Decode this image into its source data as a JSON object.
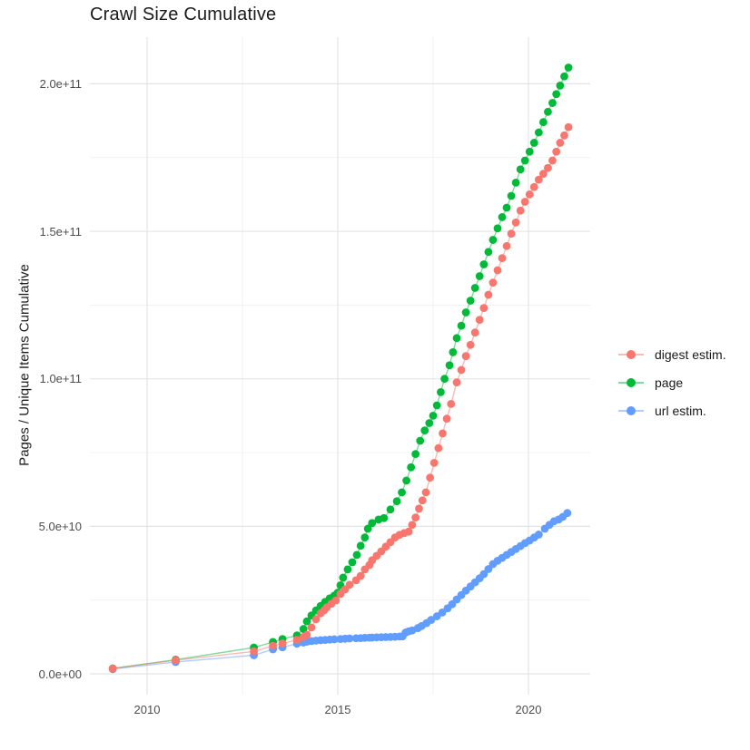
{
  "title": "Crawl Size Cumulative",
  "y_axis_title": "Pages / Unique Items Cumulative",
  "legend": {
    "items": [
      {
        "label": "digest estim.",
        "color": "#F8766D"
      },
      {
        "label": "page",
        "color": "#00BA38"
      },
      {
        "label": "url estim.",
        "color": "#619CFF"
      }
    ]
  },
  "chart_data": {
    "type": "scatter",
    "title": "Crawl Size Cumulative",
    "xlabel": "",
    "ylabel": "Pages / Unique Items Cumulative",
    "units": "values in billions (1e9) of pages / unique items, cumulative",
    "xlim": [
      2008.5,
      2021.65
    ],
    "ylim_billions": [
      -9,
      216
    ],
    "grid": "major+minor, light gray on white",
    "legend_position": "right",
    "x_axis": {
      "ticks": [
        {
          "label": "2010",
          "value": 2010
        },
        {
          "label": "2015",
          "value": 2015
        },
        {
          "label": "2020",
          "value": 2020
        }
      ],
      "minor_breaks": [
        2012.5,
        2017.5
      ]
    },
    "y_axis": {
      "ticks": [
        {
          "label": "0.0e+00",
          "value": 0
        },
        {
          "label": "5.0e+10",
          "value": 50
        },
        {
          "label": "1.0e+11",
          "value": 100
        },
        {
          "label": "1.5e+11",
          "value": 150
        },
        {
          "label": "2.0e+11",
          "value": 200
        }
      ],
      "minor_breaks": [
        25,
        75,
        125,
        175
      ]
    },
    "series": [
      {
        "name": "url estim.",
        "color": "#619CFF",
        "points": [
          [
            2009.1,
            1.6
          ],
          [
            2010.75,
            4.0
          ],
          [
            2012.8,
            6.3
          ],
          [
            2013.3,
            8.3
          ],
          [
            2013.55,
            9.0
          ],
          [
            2013.93,
            10.2
          ],
          [
            2014.1,
            10.6
          ],
          [
            2014.19,
            10.9
          ],
          [
            2014.31,
            11.1
          ],
          [
            2014.43,
            11.25
          ],
          [
            2014.55,
            11.4
          ],
          [
            2014.67,
            11.5
          ],
          [
            2014.79,
            11.6
          ],
          [
            2014.91,
            11.7
          ],
          [
            2015.07,
            11.8
          ],
          [
            2015.19,
            11.9
          ],
          [
            2015.31,
            12.0
          ],
          [
            2015.48,
            12.05
          ],
          [
            2015.6,
            12.1
          ],
          [
            2015.71,
            12.2
          ],
          [
            2015.83,
            12.25
          ],
          [
            2015.9,
            12.3
          ],
          [
            2016.02,
            12.35
          ],
          [
            2016.14,
            12.4
          ],
          [
            2016.26,
            12.45
          ],
          [
            2016.38,
            12.5
          ],
          [
            2016.5,
            12.55
          ],
          [
            2016.62,
            12.65
          ],
          [
            2016.7,
            12.7
          ],
          [
            2016.78,
            14.0
          ],
          [
            2016.86,
            14.4
          ],
          [
            2016.95,
            14.7
          ],
          [
            2017.1,
            15.5
          ],
          [
            2017.2,
            16.2
          ],
          [
            2017.33,
            17.2
          ],
          [
            2017.45,
            18.3
          ],
          [
            2017.6,
            19.5
          ],
          [
            2017.74,
            20.8
          ],
          [
            2017.88,
            22.2
          ],
          [
            2018.0,
            23.6
          ],
          [
            2018.12,
            25.2
          ],
          [
            2018.24,
            26.7
          ],
          [
            2018.36,
            28.2
          ],
          [
            2018.48,
            29.6
          ],
          [
            2018.6,
            31.0
          ],
          [
            2018.72,
            32.4
          ],
          [
            2018.83,
            33.8
          ],
          [
            2018.95,
            35.5
          ],
          [
            2019.07,
            37.2
          ],
          [
            2019.19,
            38.3
          ],
          [
            2019.31,
            39.3
          ],
          [
            2019.43,
            40.3
          ],
          [
            2019.55,
            41.3
          ],
          [
            2019.67,
            42.3
          ],
          [
            2019.79,
            43.3
          ],
          [
            2019.91,
            44.3
          ],
          [
            2020.03,
            45.2
          ],
          [
            2020.15,
            46.2
          ],
          [
            2020.27,
            47.2
          ],
          [
            2020.43,
            49.2
          ],
          [
            2020.55,
            50.5
          ],
          [
            2020.67,
            51.7
          ],
          [
            2020.79,
            52.3
          ],
          [
            2020.9,
            53.2
          ],
          [
            2021.02,
            54.5
          ]
        ]
      },
      {
        "name": "page",
        "color": "#00BA38",
        "points": [
          [
            2009.1,
            1.85
          ],
          [
            2010.75,
            4.8
          ],
          [
            2012.8,
            8.9
          ],
          [
            2013.3,
            10.8
          ],
          [
            2013.55,
            11.8
          ],
          [
            2013.93,
            13.0
          ],
          [
            2014.1,
            15.2
          ],
          [
            2014.19,
            17.8
          ],
          [
            2014.31,
            19.8
          ],
          [
            2014.43,
            21.5
          ],
          [
            2014.55,
            23.0
          ],
          [
            2014.67,
            24.4
          ],
          [
            2014.79,
            25.6
          ],
          [
            2014.91,
            26.5
          ],
          [
            2015.0,
            27.5
          ],
          [
            2015.07,
            30.0
          ],
          [
            2015.14,
            32.6
          ],
          [
            2015.26,
            35.4
          ],
          [
            2015.38,
            37.8
          ],
          [
            2015.5,
            40.3
          ],
          [
            2015.6,
            43.4
          ],
          [
            2015.71,
            46.2
          ],
          [
            2015.79,
            49.2
          ],
          [
            2015.9,
            51.1
          ],
          [
            2016.07,
            52.3
          ],
          [
            2016.21,
            52.8
          ],
          [
            2016.38,
            55.7
          ],
          [
            2016.55,
            58.5
          ],
          [
            2016.68,
            61.5
          ],
          [
            2016.8,
            65.5
          ],
          [
            2016.92,
            70.0
          ],
          [
            2017.04,
            74.5
          ],
          [
            2017.16,
            79.0
          ],
          [
            2017.28,
            82.5
          ],
          [
            2017.4,
            85.0
          ],
          [
            2017.5,
            87.5
          ],
          [
            2017.6,
            91.0
          ],
          [
            2017.7,
            95.5
          ],
          [
            2017.8,
            100.0
          ],
          [
            2017.93,
            104.6
          ],
          [
            2018.02,
            109.0
          ],
          [
            2018.12,
            113.8
          ],
          [
            2018.24,
            118.0
          ],
          [
            2018.36,
            122.5
          ],
          [
            2018.48,
            126.5
          ],
          [
            2018.6,
            130.8
          ],
          [
            2018.72,
            134.8
          ],
          [
            2018.83,
            138.8
          ],
          [
            2018.95,
            143.0
          ],
          [
            2019.07,
            147.1
          ],
          [
            2019.19,
            151.0
          ],
          [
            2019.31,
            154.8
          ],
          [
            2019.43,
            158.0
          ],
          [
            2019.55,
            162.0
          ],
          [
            2019.67,
            166.5
          ],
          [
            2019.79,
            171.0
          ],
          [
            2019.91,
            174.0
          ],
          [
            2020.03,
            177.0
          ],
          [
            2020.15,
            180.0
          ],
          [
            2020.27,
            183.5
          ],
          [
            2020.39,
            187.0
          ],
          [
            2020.51,
            190.5
          ],
          [
            2020.63,
            193.5
          ],
          [
            2020.73,
            196.5
          ],
          [
            2020.83,
            199.4
          ],
          [
            2020.94,
            202.5
          ],
          [
            2021.05,
            205.5
          ]
        ]
      },
      {
        "name": "digest estim.",
        "color": "#F8766D",
        "points": [
          [
            2009.1,
            1.8
          ],
          [
            2010.75,
            4.6
          ],
          [
            2012.8,
            7.6
          ],
          [
            2013.3,
            9.5
          ],
          [
            2013.55,
            10.3
          ],
          [
            2013.93,
            11.5
          ],
          [
            2014.1,
            12.5
          ],
          [
            2014.19,
            13.2
          ],
          [
            2014.31,
            15.7
          ],
          [
            2014.43,
            18.5
          ],
          [
            2014.55,
            20.5
          ],
          [
            2014.64,
            21.5
          ],
          [
            2014.71,
            22.5
          ],
          [
            2014.83,
            23.7
          ],
          [
            2014.95,
            24.9
          ],
          [
            2015.07,
            27.1
          ],
          [
            2015.19,
            28.6
          ],
          [
            2015.31,
            30.2
          ],
          [
            2015.48,
            31.7
          ],
          [
            2015.6,
            33.2
          ],
          [
            2015.71,
            35.4
          ],
          [
            2015.83,
            36.9
          ],
          [
            2015.9,
            38.5
          ],
          [
            2016.02,
            40.0
          ],
          [
            2016.14,
            41.5
          ],
          [
            2016.26,
            43.1
          ],
          [
            2016.38,
            44.6
          ],
          [
            2016.5,
            46.2
          ],
          [
            2016.62,
            47.1
          ],
          [
            2016.74,
            47.7
          ],
          [
            2016.86,
            48.2
          ],
          [
            2016.95,
            50.5
          ],
          [
            2017.04,
            53.0
          ],
          [
            2017.13,
            56.0
          ],
          [
            2017.22,
            58.8
          ],
          [
            2017.31,
            61.5
          ],
          [
            2017.42,
            66.5
          ],
          [
            2017.53,
            71.5
          ],
          [
            2017.64,
            76.5
          ],
          [
            2017.75,
            81.5
          ],
          [
            2017.86,
            86.5
          ],
          [
            2017.97,
            91.5
          ],
          [
            2018.12,
            98.8
          ],
          [
            2018.24,
            103.0
          ],
          [
            2018.36,
            107.7
          ],
          [
            2018.48,
            111.5
          ],
          [
            2018.6,
            115.7
          ],
          [
            2018.72,
            120.0
          ],
          [
            2018.83,
            124.0
          ],
          [
            2018.95,
            128.5
          ],
          [
            2019.07,
            132.6
          ],
          [
            2019.19,
            136.8
          ],
          [
            2019.31,
            140.9
          ],
          [
            2019.43,
            145.0
          ],
          [
            2019.55,
            149.2
          ],
          [
            2019.67,
            153.0
          ],
          [
            2019.79,
            157.0
          ],
          [
            2019.91,
            160.0
          ],
          [
            2020.03,
            162.5
          ],
          [
            2020.15,
            165.0
          ],
          [
            2020.27,
            167.5
          ],
          [
            2020.39,
            169.5
          ],
          [
            2020.51,
            171.5
          ],
          [
            2020.63,
            174.0
          ],
          [
            2020.73,
            177.0
          ],
          [
            2020.83,
            180.0
          ],
          [
            2020.94,
            182.5
          ],
          [
            2021.05,
            185.3
          ]
        ]
      }
    ],
    "legend_order": [
      "digest estim.",
      "page",
      "url estim."
    ]
  }
}
